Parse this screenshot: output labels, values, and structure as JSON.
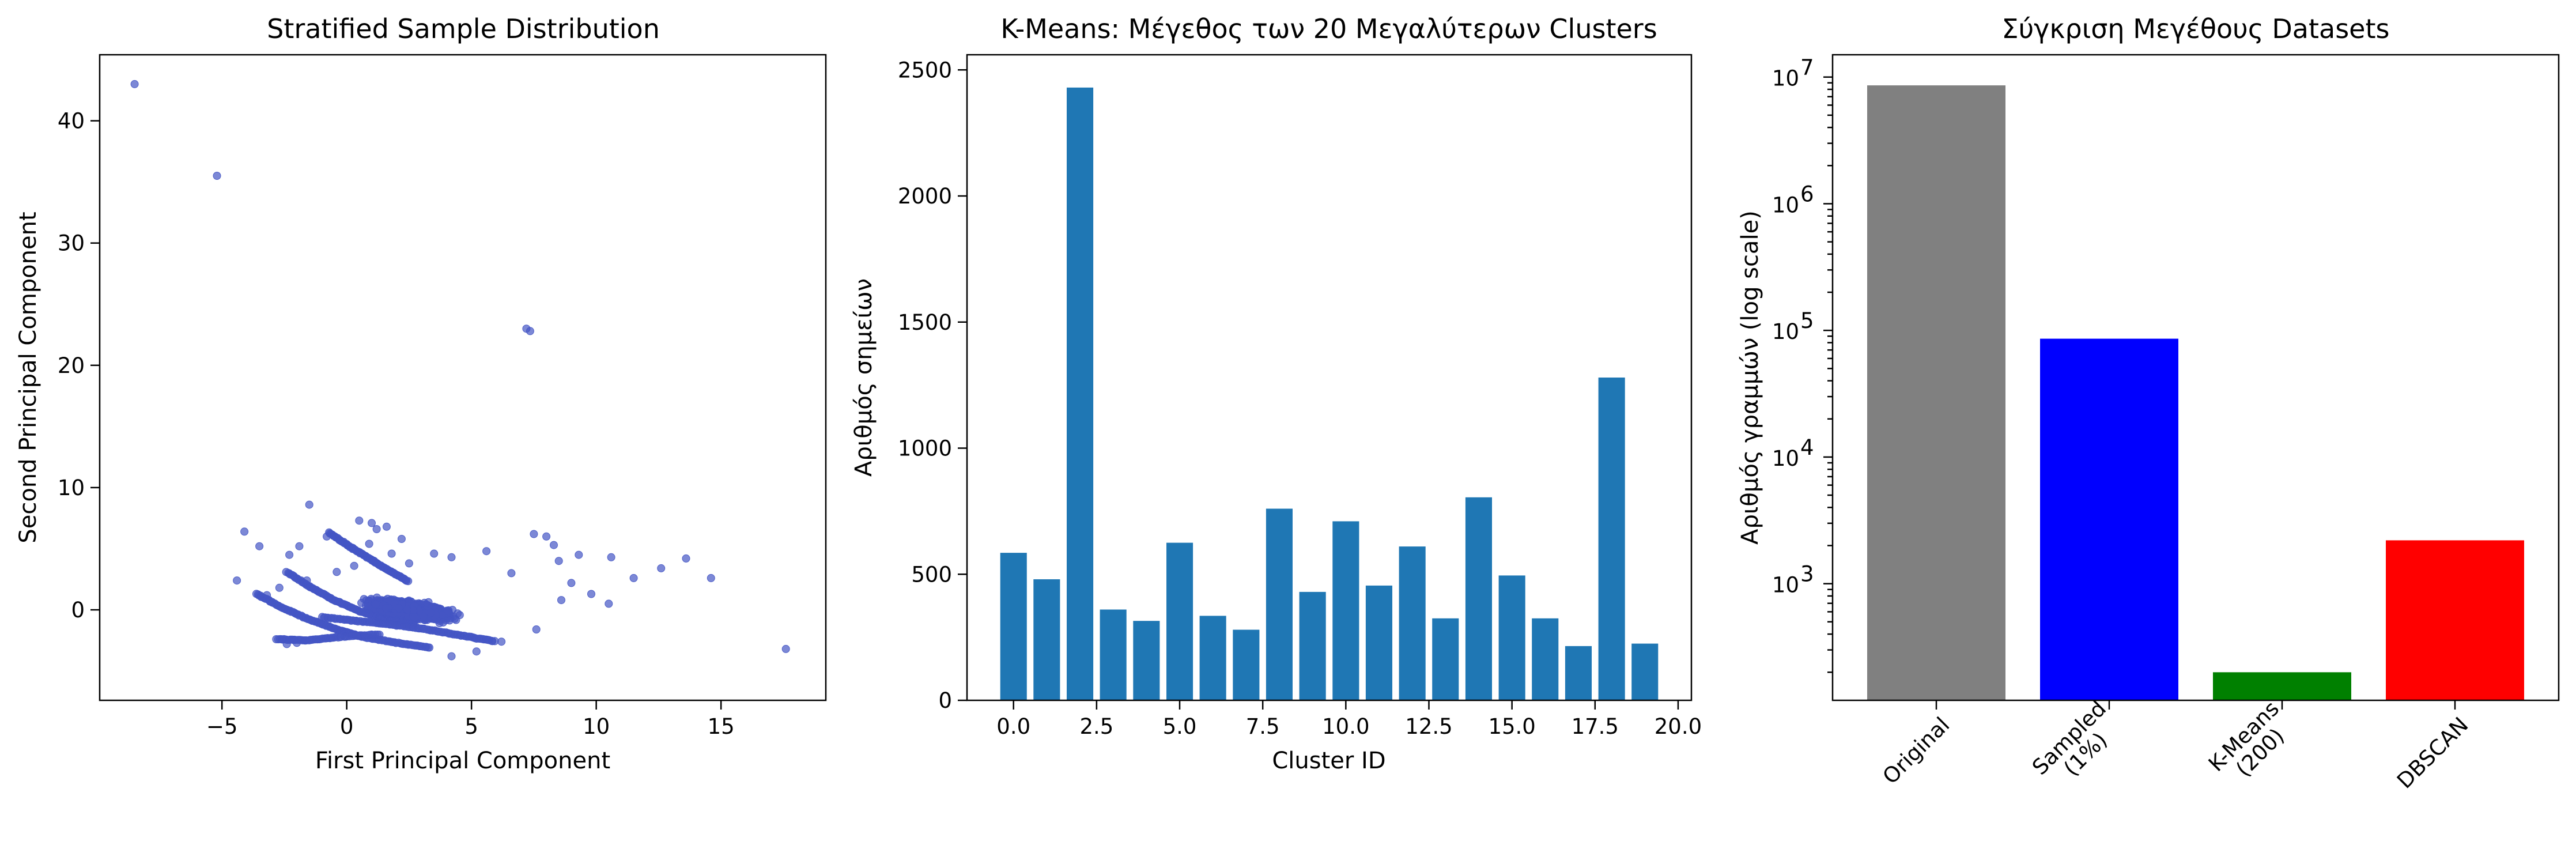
{
  "chart_data": [
    {
      "type": "scatter",
      "title": "Stratified Sample Distribution",
      "xlabel": "First Principal Component",
      "ylabel": "Second Principal Component",
      "xlim": [
        -9.9,
        19.2
      ],
      "ylim": [
        -7.4,
        45.4
      ],
      "xticks": [
        -5,
        0,
        5,
        10,
        15
      ],
      "yticks": [
        0,
        10,
        20,
        30,
        40
      ],
      "color": "#4455c4",
      "points": [
        [
          -8.5,
          43.0
        ],
        [
          -5.2,
          35.5
        ],
        [
          7.2,
          23.0
        ],
        [
          7.35,
          22.8
        ],
        [
          17.6,
          -3.2
        ],
        [
          -1.5,
          8.6
        ],
        [
          0.5,
          7.3
        ],
        [
          1.0,
          7.1
        ],
        [
          1.6,
          6.8
        ],
        [
          1.2,
          6.6
        ],
        [
          -4.1,
          6.4
        ],
        [
          -0.8,
          6.0
        ],
        [
          2.2,
          5.8
        ],
        [
          7.5,
          6.2
        ],
        [
          8.0,
          6.0
        ],
        [
          -3.5,
          5.2
        ],
        [
          -1.9,
          5.2
        ],
        [
          8.3,
          5.3
        ],
        [
          5.6,
          4.8
        ],
        [
          3.5,
          4.6
        ],
        [
          -2.3,
          4.5
        ],
        [
          9.3,
          4.5
        ],
        [
          10.6,
          4.3
        ],
        [
          13.6,
          4.2
        ],
        [
          4.2,
          4.3
        ],
        [
          2.5,
          3.8
        ],
        [
          8.5,
          4.0
        ],
        [
          12.6,
          3.4
        ],
        [
          6.6,
          3.0
        ],
        [
          -4.4,
          2.4
        ],
        [
          14.6,
          2.6
        ],
        [
          11.5,
          2.6
        ],
        [
          9.0,
          2.2
        ],
        [
          9.8,
          1.3
        ],
        [
          10.5,
          0.5
        ],
        [
          8.6,
          0.8
        ],
        [
          7.6,
          -1.6
        ],
        [
          6.2,
          -2.6
        ],
        [
          5.2,
          -3.4
        ],
        [
          4.2,
          -3.8
        ],
        [
          -2.4,
          -2.8
        ],
        [
          -2.0,
          -2.7
        ],
        [
          -3.2,
          1.2
        ],
        [
          -2.7,
          1.8
        ],
        [
          -1.6,
          2.4
        ],
        [
          -0.4,
          3.1
        ],
        [
          0.3,
          3.6
        ],
        [
          1.1,
          4.0
        ],
        [
          1.8,
          4.6
        ],
        [
          0.9,
          5.4
        ]
      ],
      "band_curves": [
        [
          [
            -3.6,
            1.3
          ],
          [
            -2.6,
            0.2
          ],
          [
            -1.5,
            -0.8
          ],
          [
            -0.4,
            -1.6
          ],
          [
            0.6,
            -2.2
          ],
          [
            2.0,
            -2.7
          ],
          [
            3.4,
            -3.1
          ]
        ],
        [
          [
            -2.4,
            3.1
          ],
          [
            -1.4,
            1.8
          ],
          [
            -0.5,
            0.8
          ],
          [
            0.5,
            -0.1
          ],
          [
            1.6,
            -0.8
          ],
          [
            2.8,
            -1.3
          ]
        ],
        [
          [
            -0.7,
            6.3
          ],
          [
            0.1,
            5.2
          ],
          [
            0.9,
            4.2
          ],
          [
            1.7,
            3.2
          ],
          [
            2.5,
            2.3
          ]
        ],
        [
          [
            -1.0,
            -0.6
          ],
          [
            0.4,
            -0.9
          ],
          [
            1.8,
            -1.2
          ],
          [
            3.2,
            -1.6
          ],
          [
            4.6,
            -2.1
          ],
          [
            6.0,
            -2.6
          ]
        ],
        [
          [
            -2.8,
            -2.4
          ],
          [
            -1.6,
            -2.5
          ],
          [
            -0.2,
            -2.2
          ],
          [
            1.4,
            -2.0
          ]
        ]
      ],
      "cloud": {
        "x_range": [
          -1.5,
          8.5
        ],
        "y_range": [
          -2.8,
          3.2
        ],
        "peak": [
          2.5,
          0.0
        ]
      }
    },
    {
      "type": "bar",
      "title": "K-Means: Μέγεθος των 20 Μεγαλύτερων Clusters",
      "xlabel": "Cluster ID",
      "ylabel": "Αριθμός σημείων",
      "xlim": [
        -1.4,
        20.4
      ],
      "ylim": [
        0,
        2560
      ],
      "xticks": [
        "0.0",
        "2.5",
        "5.0",
        "7.5",
        "10.0",
        "12.5",
        "15.0",
        "17.5",
        "20.0"
      ],
      "yticks": [
        0,
        500,
        1000,
        1500,
        2000,
        2500
      ],
      "color": "#1f77b4",
      "x": [
        0,
        1,
        2,
        3,
        4,
        5,
        6,
        7,
        8,
        9,
        10,
        11,
        12,
        13,
        14,
        15,
        16,
        17,
        18,
        19
      ],
      "values": [
        585,
        480,
        2430,
        360,
        315,
        625,
        335,
        280,
        760,
        430,
        710,
        455,
        610,
        325,
        805,
        495,
        325,
        215,
        1280,
        225
      ]
    },
    {
      "type": "bar",
      "title": "Σύγκριση Μεγέθους Datasets",
      "xlabel": "",
      "ylabel": "Αριθμός γραμμών (log scale)",
      "yscale": "log",
      "ylim": [
        120,
        15000000
      ],
      "yticks": [
        {
          "value": 1000,
          "base": "10",
          "exp": "3"
        },
        {
          "value": 10000,
          "base": "10",
          "exp": "4"
        },
        {
          "value": 100000,
          "base": "10",
          "exp": "5"
        },
        {
          "value": 1000000,
          "base": "10",
          "exp": "6"
        },
        {
          "value": 10000000,
          "base": "10",
          "exp": "7"
        }
      ],
      "categories": [
        {
          "lines": [
            "Original"
          ]
        },
        {
          "lines": [
            "Sampled",
            "(1%)"
          ]
        },
        {
          "lines": [
            "K-Means",
            "(200)"
          ]
        },
        {
          "lines": [
            "DBSCAN"
          ]
        }
      ],
      "values": [
        8600000,
        86000,
        200,
        2200
      ],
      "colors": [
        "#808080",
        "#0000ff",
        "#008000",
        "#ff0000"
      ]
    }
  ]
}
